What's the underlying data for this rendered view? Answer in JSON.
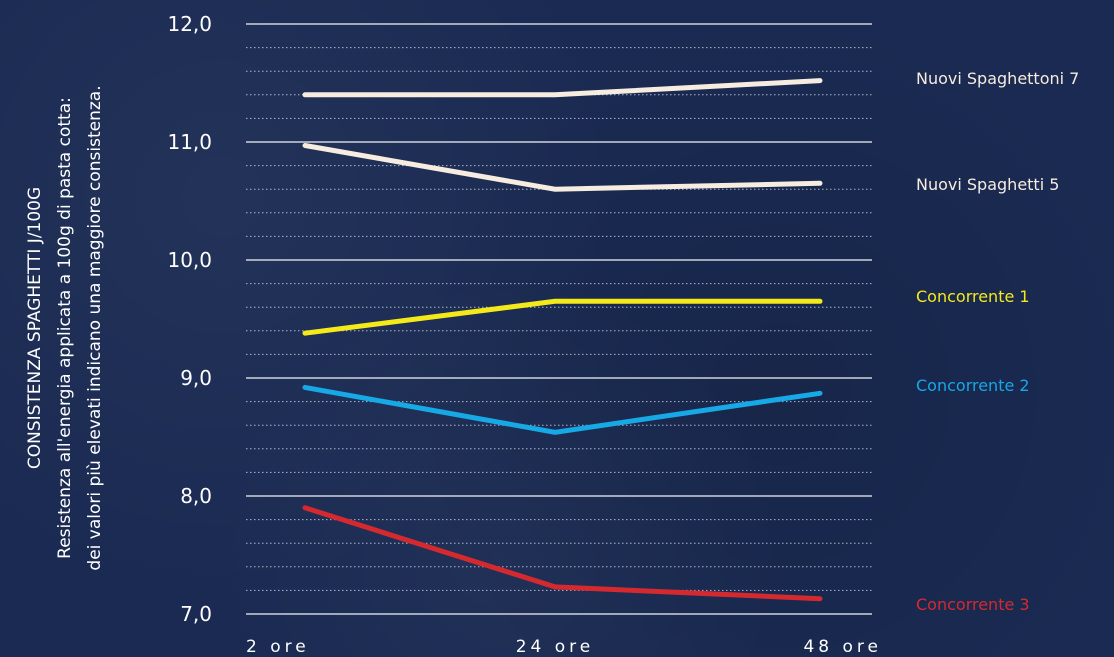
{
  "chart_data": {
    "type": "line",
    "ylabel": "CONSISTENZA SPAGHETTI J/100G",
    "ylabel_sub1": "Resistenza all'energia applicata a 100g di pasta cotta:",
    "ylabel_sub2": "dei valori più elevati indicano una maggiore consistenza.",
    "x": [
      "2 ore",
      "24 ore",
      "48 ore"
    ],
    "y_ticks": [
      "12,0",
      "11,0",
      "10,0",
      "9,0",
      "8,0",
      "7,0"
    ],
    "ylim": [
      7.0,
      12.0
    ],
    "grid": true,
    "legend_placement": "right",
    "series": [
      {
        "name": "Nuovi Spaghettoni 7",
        "color": "#f6ecdf",
        "values": [
          11.4,
          11.4,
          11.52
        ]
      },
      {
        "name": "Nuovi Spaghetti 5",
        "color": "#f6ecdf",
        "values": [
          10.97,
          10.6,
          10.65
        ]
      },
      {
        "name": "Concorrente 1",
        "color": "#f4ea1a",
        "values": [
          9.38,
          9.65,
          9.65
        ]
      },
      {
        "name": "Concorrente 2",
        "color": "#17a8e6",
        "values": [
          8.92,
          8.54,
          8.87
        ]
      },
      {
        "name": "Concorrente 3",
        "color": "#d42a2f",
        "values": [
          7.9,
          7.23,
          7.13
        ]
      }
    ]
  }
}
